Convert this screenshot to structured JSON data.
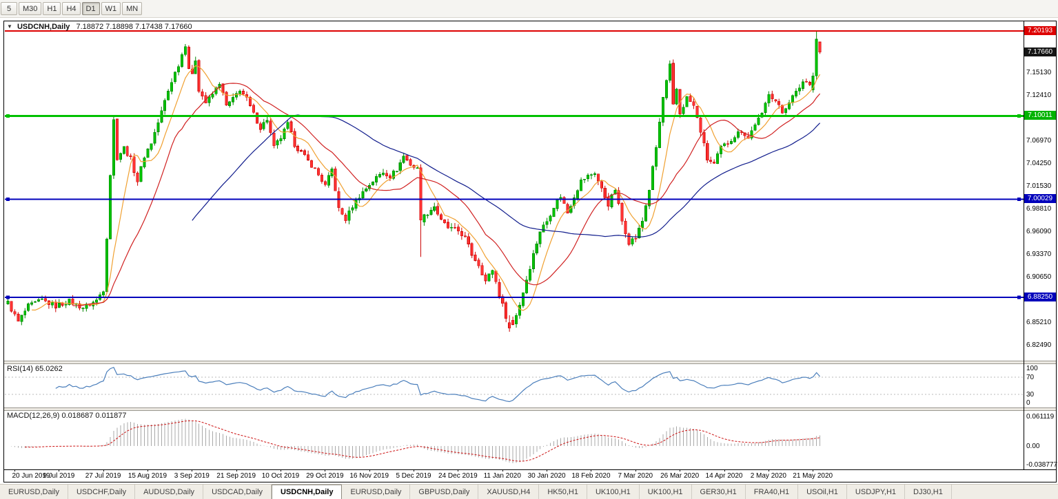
{
  "toolbar": {
    "timeframes": [
      {
        "label": "5",
        "active": false
      },
      {
        "label": "M30",
        "active": false
      },
      {
        "label": "H1",
        "active": false
      },
      {
        "label": "H4",
        "active": false
      },
      {
        "label": "D1",
        "active": true
      },
      {
        "label": "W1",
        "active": false
      },
      {
        "label": "MN",
        "active": false
      }
    ]
  },
  "chart": {
    "dropdown_icon": "▼",
    "symbol": "USDCNH,Daily",
    "ohlc": "7.18872 7.18898 7.17438 7.17660"
  },
  "price_axis": {
    "ticks": [
      {
        "text": "7.15130",
        "value": 7.1513
      },
      {
        "text": "7.12410",
        "value": 7.1241
      },
      {
        "text": "7.09690",
        "value": 7.0969
      },
      {
        "text": "7.06970",
        "value": 7.0697
      },
      {
        "text": "7.04250",
        "value": 7.0425
      },
      {
        "text": "7.01530",
        "value": 7.0153
      },
      {
        "text": "6.98810",
        "value": 6.9881
      },
      {
        "text": "6.96090",
        "value": 6.9609
      },
      {
        "text": "6.93370",
        "value": 6.9337
      },
      {
        "text": "6.90650",
        "value": 6.9065
      },
      {
        "text": "6.87930",
        "value": 6.8793
      },
      {
        "text": "6.85210",
        "value": 6.8521
      },
      {
        "text": "6.82490",
        "value": 6.8249
      }
    ],
    "tags": [
      {
        "label": "7.20193",
        "bg": "#dd0000",
        "price": 7.20193
      },
      {
        "label": "7.17660",
        "bg": "#151515",
        "price": 7.1766
      },
      {
        "label": "7.10011",
        "bg": "#00b300",
        "price": 7.10011
      },
      {
        "label": "7.00029",
        "bg": "#0000bb",
        "price": 7.00029
      },
      {
        "label": "6.88250",
        "bg": "#0000bb",
        "price": 6.8825
      }
    ]
  },
  "chart_data": {
    "type": "candlestick",
    "symbol": "USDCNH",
    "timeframe": "Daily",
    "bar_count": 239,
    "up_color": "#00c100",
    "up_stroke": "#008500",
    "down_color": "#ff3333",
    "down_stroke": "#cc0000",
    "price_anchors": [
      [
        0,
        6.876
      ],
      [
        3,
        6.853
      ],
      [
        6,
        6.872
      ],
      [
        10,
        6.879
      ],
      [
        14,
        6.872
      ],
      [
        18,
        6.878
      ],
      [
        22,
        6.87
      ],
      [
        26,
        6.879
      ],
      [
        28,
        6.892
      ],
      [
        29,
        6.955
      ],
      [
        30,
        7.03
      ],
      [
        31,
        7.095
      ],
      [
        32,
        7.05
      ],
      [
        34,
        7.062
      ],
      [
        36,
        7.048
      ],
      [
        38,
        7.022
      ],
      [
        40,
        7.052
      ],
      [
        42,
        7.068
      ],
      [
        44,
        7.092
      ],
      [
        46,
        7.118
      ],
      [
        48,
        7.142
      ],
      [
        50,
        7.162
      ],
      [
        52,
        7.186
      ],
      [
        53,
        7.158
      ],
      [
        54,
        7.148
      ],
      [
        55,
        7.168
      ],
      [
        56,
        7.132
      ],
      [
        58,
        7.116
      ],
      [
        60,
        7.126
      ],
      [
        62,
        7.14
      ],
      [
        64,
        7.112
      ],
      [
        66,
        7.12
      ],
      [
        68,
        7.132
      ],
      [
        70,
        7.12
      ],
      [
        72,
        7.102
      ],
      [
        74,
        7.086
      ],
      [
        76,
        7.096
      ],
      [
        78,
        7.062
      ],
      [
        80,
        7.074
      ],
      [
        82,
        7.09
      ],
      [
        84,
        7.066
      ],
      [
        86,
        7.056
      ],
      [
        88,
        7.046
      ],
      [
        90,
        7.036
      ],
      [
        93,
        7.016
      ],
      [
        95,
        7.036
      ],
      [
        97,
        6.988
      ],
      [
        99,
        6.976
      ],
      [
        101,
        6.992
      ],
      [
        103,
        7.004
      ],
      [
        106,
        7.018
      ],
      [
        108,
        7.026
      ],
      [
        110,
        7.033
      ],
      [
        112,
        7.028
      ],
      [
        114,
        7.036
      ],
      [
        116,
        7.052
      ],
      [
        118,
        7.042
      ],
      [
        120,
        7.036
      ],
      [
        121,
        6.975
      ],
      [
        123,
        6.984
      ],
      [
        125,
        6.992
      ],
      [
        127,
        6.974
      ],
      [
        129,
        6.966
      ],
      [
        132,
        6.962
      ],
      [
        134,
        6.954
      ],
      [
        136,
        6.934
      ],
      [
        138,
        6.922
      ],
      [
        140,
        6.902
      ],
      [
        142,
        6.916
      ],
      [
        144,
        6.886
      ],
      [
        146,
        6.86
      ],
      [
        148,
        6.85
      ],
      [
        150,
        6.874
      ],
      [
        152,
        6.904
      ],
      [
        154,
        6.934
      ],
      [
        156,
        6.962
      ],
      [
        158,
        6.974
      ],
      [
        160,
        6.992
      ],
      [
        162,
        7.004
      ],
      [
        164,
        6.984
      ],
      [
        166,
        7.004
      ],
      [
        168,
        7.022
      ],
      [
        170,
        7.028
      ],
      [
        172,
        7.032
      ],
      [
        174,
        7.012
      ],
      [
        176,
        6.994
      ],
      [
        178,
        7.012
      ],
      [
        180,
        6.974
      ],
      [
        182,
        6.949
      ],
      [
        184,
        6.954
      ],
      [
        186,
        6.974
      ],
      [
        188,
        7.012
      ],
      [
        190,
        7.062
      ],
      [
        192,
        7.122
      ],
      [
        194,
        7.16
      ],
      [
        195,
        7.112
      ],
      [
        196,
        7.132
      ],
      [
        197,
        7.103
      ],
      [
        199,
        7.122
      ],
      [
        201,
        7.112
      ],
      [
        203,
        7.082
      ],
      [
        205,
        7.048
      ],
      [
        207,
        7.042
      ],
      [
        209,
        7.062
      ],
      [
        211,
        7.068
      ],
      [
        213,
        7.076
      ],
      [
        215,
        7.083
      ],
      [
        217,
        7.073
      ],
      [
        219,
        7.091
      ],
      [
        221,
        7.101
      ],
      [
        223,
        7.128
      ],
      [
        225,
        7.118
      ],
      [
        227,
        7.104
      ],
      [
        229,
        7.118
      ],
      [
        231,
        7.128
      ],
      [
        233,
        7.141
      ],
      [
        235,
        7.14
      ],
      [
        236,
        7.15
      ],
      [
        237,
        7.192
      ],
      [
        238,
        7.1766
      ]
    ],
    "overrides": {
      "121": [
        7.038,
        7.042,
        6.931,
        6.975
      ],
      "147": [
        6.852,
        6.861,
        6.8412,
        6.8455
      ],
      "236": [
        7.131,
        7.152,
        7.128,
        7.148
      ],
      "237": [
        7.148,
        7.2019,
        7.143,
        7.192
      ],
      "238": [
        7.18872,
        7.18898,
        7.17438,
        7.1766
      ]
    },
    "hlines": [
      {
        "price": 7.20193,
        "color": "#dd0000",
        "width": 2,
        "handles": false
      },
      {
        "price": 7.10011,
        "color": "#00c100",
        "width": 3,
        "handles": true
      },
      {
        "price": 7.00029,
        "color": "#0000bb",
        "width": 2,
        "handles": true
      },
      {
        "price": 6.8825,
        "color": "#0000bb",
        "width": 2,
        "handles": true
      }
    ],
    "moving_averages": [
      {
        "period": 8,
        "color": "#f0a030"
      },
      {
        "period": 20,
        "color": "#d02020"
      },
      {
        "period": 55,
        "color": "#101c8c"
      }
    ]
  },
  "rsi": {
    "label": "RSI(14) 65.0262",
    "period": 14,
    "color": "#4a7ebb",
    "levels": [
      70,
      30
    ],
    "axis_labels": [
      {
        "text": "100",
        "value": 100
      },
      {
        "text": "70",
        "value": 70
      },
      {
        "text": "30",
        "value": 30
      },
      {
        "text": "0",
        "value": 0
      }
    ]
  },
  "macd": {
    "label": "MACD(12,26,9) 0.018687 0.011877",
    "fast": 12,
    "slow": 26,
    "signal": 9,
    "hist_color": "#a8a8a8",
    "signal_color": "#cc1111",
    "axis_labels": [
      {
        "text": "0.061119",
        "value": 0.061119
      },
      {
        "text": "0.00",
        "value": 0
      },
      {
        "text": "-0.038777",
        "value": -0.038777
      }
    ]
  },
  "date_axis": {
    "first_bar": 2,
    "bar_step": 13,
    "labels": [
      "20 Jun 2019",
      "9 Jul 2019",
      "27 Jul 2019",
      "15 Aug 2019",
      "3 Sep 2019",
      "21 Sep 2019",
      "10 Oct 2019",
      "29 Oct 2019",
      "16 Nov 2019",
      "5 Dec 2019",
      "24 Dec 2019",
      "11 Jan 2020",
      "30 Jan 2020",
      "18 Feb 2020",
      "7 Mar 2020",
      "26 Mar 2020",
      "14 Apr 2020",
      "2 May 2020",
      "21 May 2020"
    ]
  },
  "tabs": {
    "active_index": 4,
    "items": [
      "EURUSD,Daily",
      "USDCHF,Daily",
      "AUDUSD,Daily",
      "USDCAD,Daily",
      "USDCNH,Daily",
      "EURUSD,Daily",
      "GBPUSD,Daily",
      "XAUUSD,H4",
      "HK50,H1",
      "UK100,H1",
      "UK100,H1",
      "GER30,H1",
      "FRA40,H1",
      "USOil,H1",
      "USDJPY,H1",
      "DJ30,H1"
    ]
  }
}
